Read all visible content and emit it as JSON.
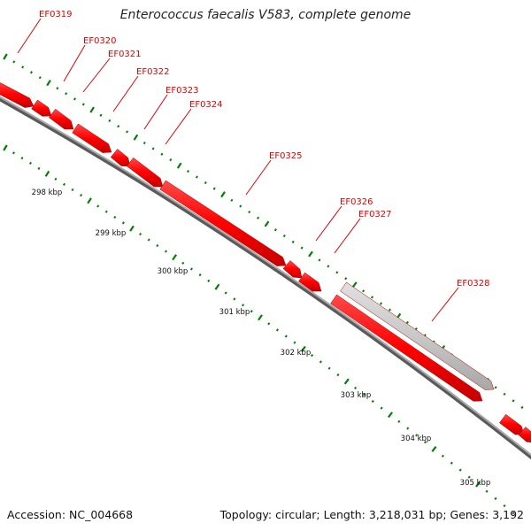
{
  "title": "Enterococcus faecalis V583, complete genome",
  "footer": {
    "accession": "Accession: NC_004668",
    "topology": "Topology: circular; Length: 3,218,031 bp; Genes: 3,192"
  },
  "genes": [
    "EF0319",
    "EF0320",
    "EF0321",
    "EF0322",
    "EF0323",
    "EF0324",
    "EF0325",
    "EF0326",
    "EF0327",
    "EF0328"
  ],
  "tick_labels": [
    "298 kbp",
    "299 kbp",
    "300 kbp",
    "301 kbp",
    "302 kbp",
    "303 kbp",
    "304 kbp",
    "305 kbp"
  ],
  "colors": {
    "cds": "#ff0000",
    "other_feature": "#c8c8c8",
    "label": "#e00000",
    "backbone": "#808080",
    "tick": "#008000"
  }
}
